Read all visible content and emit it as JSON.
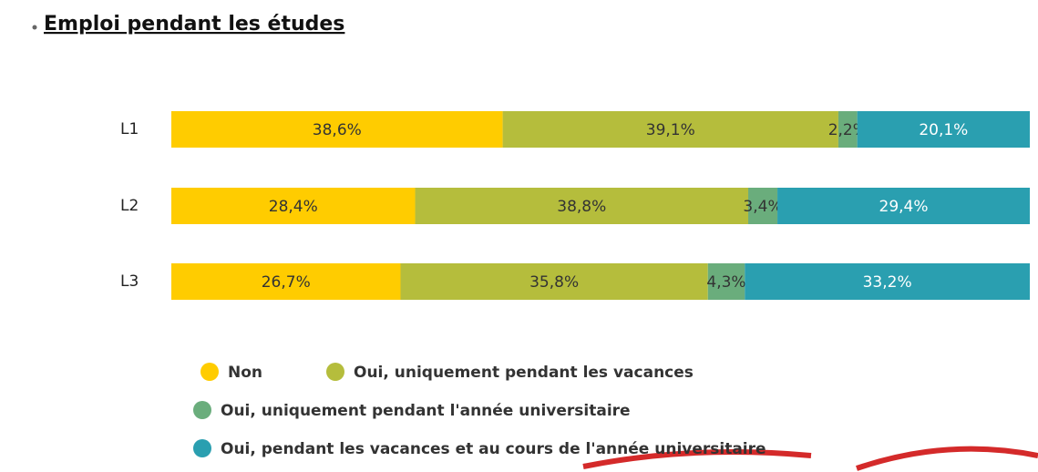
{
  "chart_data": {
    "type": "stacked-bar",
    "title": "Emploi pendant les études",
    "categories": [
      "L1",
      "L2",
      "L3"
    ],
    "xlim": [
      0,
      100
    ],
    "series": [
      {
        "name": "Non",
        "color": "#ffcc00",
        "values": [
          38.6,
          28.4,
          26.7
        ],
        "value_labels": [
          "38,6%",
          "28,4%",
          "26,7%"
        ]
      },
      {
        "name": "Oui, uniquement pendant les vacances",
        "color": "#b5bd3c",
        "values": [
          39.1,
          38.8,
          35.8
        ],
        "value_labels": [
          "39,1%",
          "38,8%",
          "35,8%"
        ]
      },
      {
        "name": "Oui, uniquement pendant l'année universitaire",
        "color": "#6aad7c",
        "values": [
          2.2,
          3.4,
          4.3
        ],
        "value_labels": [
          "2,2%",
          "3,4%",
          "4,3%"
        ]
      },
      {
        "name": "Oui, pendant les vacances et au cours de l'année universitaire",
        "color": "#2a9fb0",
        "values": [
          20.1,
          29.4,
          33.2
        ],
        "value_labels": [
          "20,1%",
          "29,4%",
          "33,2%"
        ]
      }
    ]
  }
}
